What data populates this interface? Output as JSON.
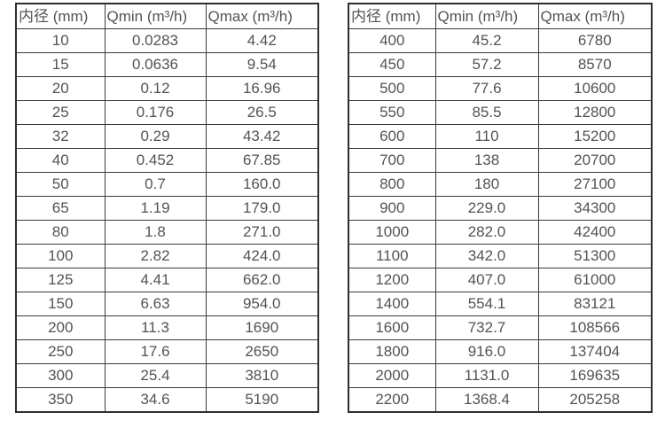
{
  "colors": {
    "background": "#ffffff",
    "table_border": "#2e2e2e",
    "cell_border": "#3a3a3a",
    "text": "#535353"
  },
  "left_table": {
    "headers": [
      "内径 (mm)",
      "Qmin (m³/h)",
      "Qmax (m³/h)"
    ],
    "rows": [
      [
        "10",
        "0.0283",
        "4.42"
      ],
      [
        "15",
        "0.0636",
        "9.54"
      ],
      [
        "20",
        "0.12",
        "16.96"
      ],
      [
        "25",
        "0.176",
        "26.5"
      ],
      [
        "32",
        "0.29",
        "43.42"
      ],
      [
        "40",
        "0.452",
        "67.85"
      ],
      [
        "50",
        "0.7",
        "160.0"
      ],
      [
        "65",
        "1.19",
        "179.0"
      ],
      [
        "80",
        "1.8",
        "271.0"
      ],
      [
        "100",
        "2.82",
        "424.0"
      ],
      [
        "125",
        "4.41",
        "662.0"
      ],
      [
        "150",
        "6.63",
        "954.0"
      ],
      [
        "200",
        "11.3",
        "1690"
      ],
      [
        "250",
        "17.6",
        "2650"
      ],
      [
        "300",
        "25.4",
        "3810"
      ],
      [
        "350",
        "34.6",
        "5190"
      ]
    ]
  },
  "right_table": {
    "headers": [
      "内径 (mm)",
      "Qmin (m³/h)",
      "Qmax (m³/h)"
    ],
    "rows": [
      [
        "400",
        "45.2",
        "6780"
      ],
      [
        "450",
        "57.2",
        "8570"
      ],
      [
        "500",
        "77.6",
        "10600"
      ],
      [
        "550",
        "85.5",
        "12800"
      ],
      [
        "600",
        "110",
        "15200"
      ],
      [
        "700",
        "138",
        "20700"
      ],
      [
        "800",
        "180",
        "27100"
      ],
      [
        "900",
        "229.0",
        "34300"
      ],
      [
        "1000",
        "282.0",
        "42400"
      ],
      [
        "1100",
        "342.0",
        "51300"
      ],
      [
        "1200",
        "407.0",
        "61000"
      ],
      [
        "1400",
        "554.1",
        "83121"
      ],
      [
        "1600",
        "732.7",
        "108566"
      ],
      [
        "1800",
        "916.0",
        "137404"
      ],
      [
        "2000",
        "1131.0",
        "169635"
      ],
      [
        "2200",
        "1368.4",
        "205258"
      ]
    ]
  }
}
